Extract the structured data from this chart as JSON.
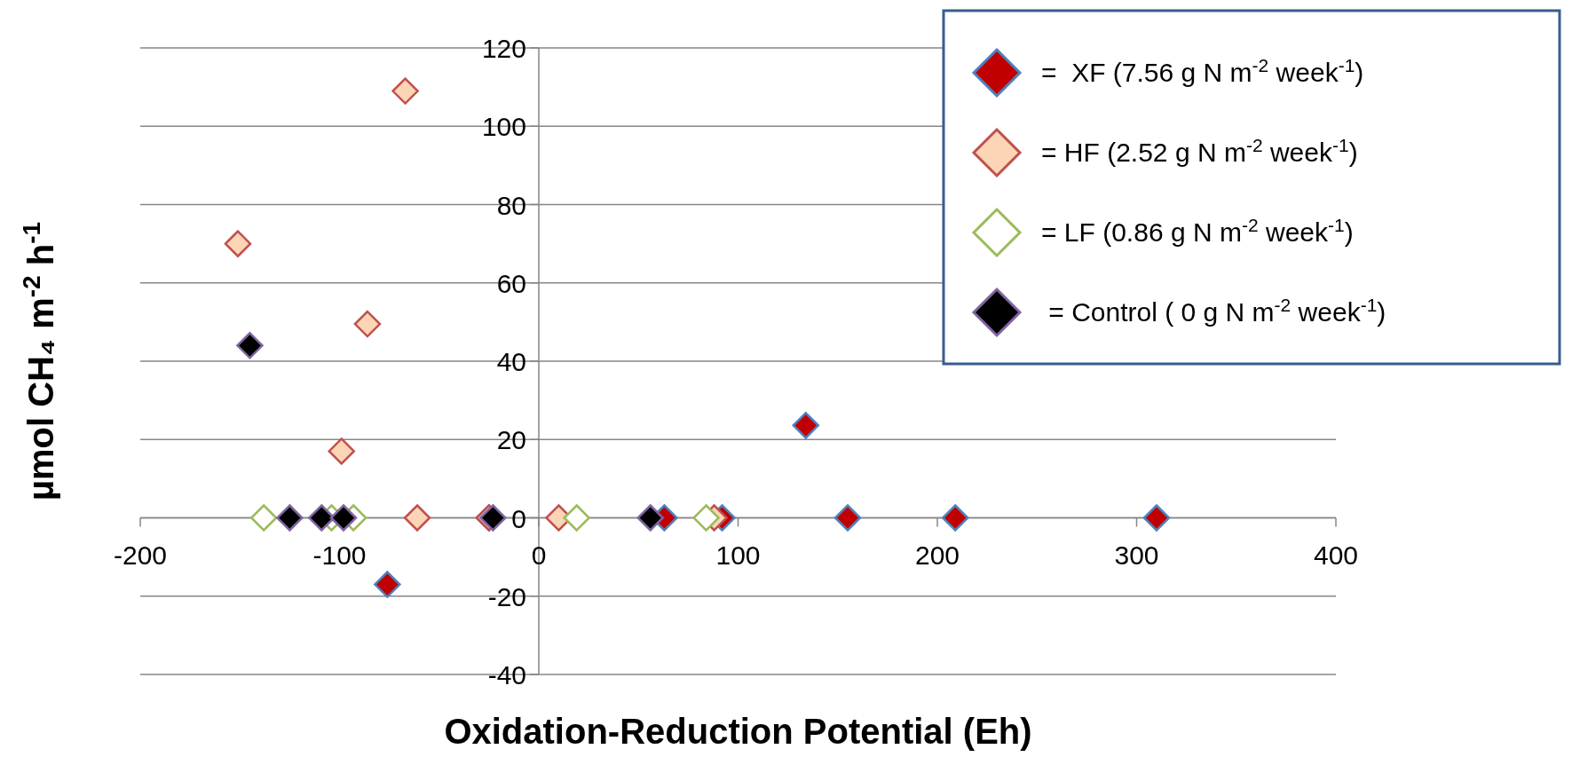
{
  "chart_data": {
    "type": "scatter",
    "xlabel": "Oxidation-Reduction Potential (Eh)",
    "ylabel": "µmol CH₄ m$^{-2}$ h$^{-1}$",
    "xlim": [
      -200,
      400
    ],
    "xticks": [
      -200,
      -100,
      0,
      100,
      200,
      300,
      400
    ],
    "ylim": [
      -40,
      120
    ],
    "yticks": [
      -40,
      -20,
      0,
      20,
      40,
      60,
      80,
      100,
      120
    ],
    "grid": "y",
    "legend": "top right",
    "marker": "diamond",
    "series": [
      {
        "name": "=  XF (7.56 g N m$^{-2}$ week$^{-1}$)",
        "color": "#c00000",
        "x": [
          -76,
          -25,
          63,
          92,
          134,
          155,
          209,
          310
        ],
        "values": [
          -17,
          0,
          0,
          0,
          23.6,
          0,
          0,
          0
        ]
      },
      {
        "name": "= HF (2.52 g N m$^{-2}$ week$^{-1}$)",
        "color": "#fbd5b5",
        "x": [
          -67,
          -151,
          -86,
          -99,
          -61,
          -25,
          10,
          88
        ],
        "values": [
          109,
          70,
          49.5,
          17,
          0,
          0,
          0,
          0
        ]
      },
      {
        "name": "= LF (0.86 g N m$^{-2}$ week$^{-1}$)",
        "color": "#ffffff",
        "x": [
          -138,
          -104,
          -93,
          19,
          84
        ],
        "values": [
          0,
          0,
          0,
          0,
          0
        ]
      },
      {
        "name": " = Control ( 0 g N m$^{-2}$ week$^{-1}$)",
        "color": "#000000",
        "x": [
          -145,
          -125,
          -109,
          -98,
          -23,
          56
        ],
        "values": [
          44,
          0,
          0,
          0,
          0,
          0
        ]
      }
    ]
  }
}
